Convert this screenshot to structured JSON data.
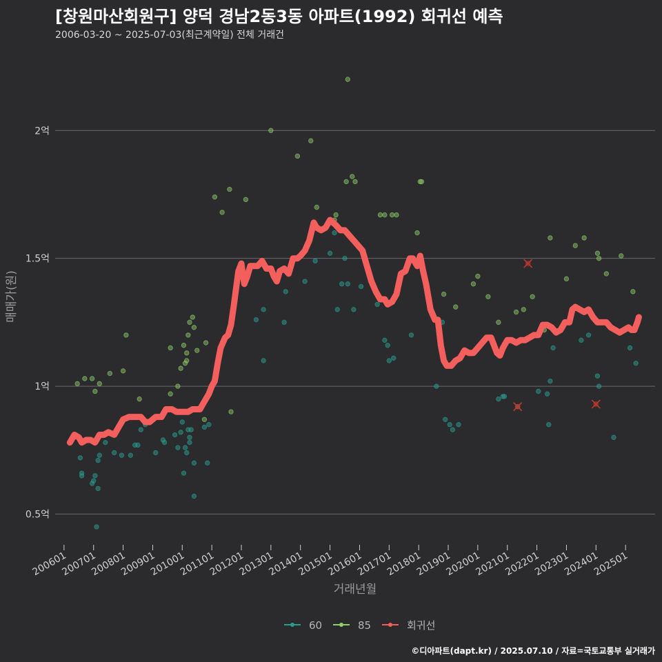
{
  "chart_data": {
    "type": "scatter",
    "title": "[창원마산회원구] 양덕 경남2동3동 아파트(1992) 회귀선 예측",
    "subtitle": "2006-03-20 ~ 2025-07-03(최근계약일) 전체 거래건",
    "xlabel": "거래년월",
    "ylabel": "매매가(원)",
    "footer": "©디아파트(dapt.kr) / 2025.07.10 / 자료=국토교통부 실거래가",
    "x_range": [
      2005.7,
      2026.0
    ],
    "y_range": [
      0.38,
      2.3
    ],
    "x_ticks": [
      {
        "x": 2006,
        "label": "200601"
      },
      {
        "x": 2007,
        "label": "200701"
      },
      {
        "x": 2008,
        "label": "200801"
      },
      {
        "x": 2009,
        "label": "200901"
      },
      {
        "x": 2010,
        "label": "201001"
      },
      {
        "x": 2011,
        "label": "201101"
      },
      {
        "x": 2012,
        "label": "201201"
      },
      {
        "x": 2013,
        "label": "201301"
      },
      {
        "x": 2014,
        "label": "201401"
      },
      {
        "x": 2015,
        "label": "201501"
      },
      {
        "x": 2016,
        "label": "201601"
      },
      {
        "x": 2017,
        "label": "201701"
      },
      {
        "x": 2018,
        "label": "201801"
      },
      {
        "x": 2019,
        "label": "201901"
      },
      {
        "x": 2020,
        "label": "202001"
      },
      {
        "x": 2021,
        "label": "202101"
      },
      {
        "x": 2022,
        "label": "202201"
      },
      {
        "x": 2023,
        "label": "202301"
      },
      {
        "x": 2024,
        "label": "202401"
      },
      {
        "x": 2025,
        "label": "202501"
      }
    ],
    "y_ticks": [
      {
        "y": 0.5,
        "label": "0.5억"
      },
      {
        "y": 1.0,
        "label": "1억"
      },
      {
        "y": 1.5,
        "label": "1.5억"
      },
      {
        "y": 2.0,
        "label": "2억"
      }
    ],
    "colors": {
      "s60": "#2a9d8f",
      "s85": "#8fd16a",
      "line": "#f25f5c",
      "cancel": "#c0392b"
    },
    "legend": [
      {
        "key": "s60",
        "label": "60"
      },
      {
        "key": "s85",
        "label": "85"
      },
      {
        "key": "line",
        "label": "회귀선"
      }
    ],
    "series_60": [
      [
        2006.55,
        0.72
      ],
      [
        2006.6,
        0.65
      ],
      [
        2006.6,
        0.66
      ],
      [
        2006.95,
        0.62
      ],
      [
        2007.0,
        0.63
      ],
      [
        2007.05,
        0.65
      ],
      [
        2007.1,
        0.45
      ],
      [
        2007.15,
        0.6
      ],
      [
        2007.15,
        0.71
      ],
      [
        2007.2,
        0.73
      ],
      [
        2007.4,
        0.78
      ],
      [
        2007.7,
        0.74
      ],
      [
        2007.95,
        0.73
      ],
      [
        2008.25,
        0.73
      ],
      [
        2008.4,
        0.77
      ],
      [
        2008.5,
        0.77
      ],
      [
        2008.6,
        0.83
      ],
      [
        2008.75,
        0.85
      ],
      [
        2009.1,
        0.74
      ],
      [
        2009.35,
        0.79
      ],
      [
        2009.4,
        0.78
      ],
      [
        2009.75,
        0.81
      ],
      [
        2009.85,
        0.76
      ],
      [
        2009.95,
        0.82
      ],
      [
        2010.0,
        0.86
      ],
      [
        2010.05,
        0.66
      ],
      [
        2010.1,
        0.76
      ],
      [
        2010.15,
        0.74
      ],
      [
        2010.2,
        0.83
      ],
      [
        2010.25,
        0.8
      ],
      [
        2010.25,
        0.78
      ],
      [
        2010.3,
        0.83
      ],
      [
        2010.4,
        0.57
      ],
      [
        2010.4,
        0.7
      ],
      [
        2010.75,
        0.84
      ],
      [
        2010.85,
        0.7
      ],
      [
        2010.9,
        0.85
      ],
      [
        2012.5,
        1.26
      ],
      [
        2012.75,
        1.1
      ],
      [
        2012.75,
        1.3
      ],
      [
        2013.45,
        1.25
      ],
      [
        2013.5,
        1.37
      ],
      [
        2014.15,
        1.41
      ],
      [
        2014.5,
        1.49
      ],
      [
        2015.0,
        1.52
      ],
      [
        2015.15,
        1.6
      ],
      [
        2015.25,
        1.3
      ],
      [
        2015.4,
        1.4
      ],
      [
        2015.5,
        1.5
      ],
      [
        2015.6,
        1.4
      ],
      [
        2015.8,
        1.3
      ],
      [
        2016.05,
        1.39
      ],
      [
        2016.6,
        1.32
      ],
      [
        2016.85,
        1.18
      ],
      [
        2016.95,
        1.16
      ],
      [
        2017.0,
        1.1
      ],
      [
        2017.15,
        1.11
      ],
      [
        2017.75,
        1.2
      ],
      [
        2018.6,
        1.0
      ],
      [
        2018.8,
        1.25
      ],
      [
        2018.9,
        0.87
      ],
      [
        2019.05,
        0.85
      ],
      [
        2019.15,
        0.83
      ],
      [
        2019.35,
        0.85
      ],
      [
        2020.7,
        0.95
      ],
      [
        2020.85,
        0.96
      ],
      [
        2020.9,
        0.96
      ],
      [
        2021.35,
        0.92
      ],
      [
        2022.05,
        0.98
      ],
      [
        2022.35,
        0.97
      ],
      [
        2022.4,
        0.85
      ],
      [
        2022.45,
        1.02
      ],
      [
        2022.55,
        1.15
      ],
      [
        2023.5,
        1.18
      ],
      [
        2023.75,
        1.2
      ],
      [
        2024.05,
        1.04
      ],
      [
        2024.1,
        1.0
      ],
      [
        2024.6,
        0.8
      ],
      [
        2025.15,
        1.15
      ],
      [
        2025.35,
        1.09
      ]
    ],
    "series_85": [
      [
        2006.45,
        1.01
      ],
      [
        2006.7,
        1.03
      ],
      [
        2006.95,
        1.03
      ],
      [
        2007.05,
        0.98
      ],
      [
        2007.2,
        1.01
      ],
      [
        2007.55,
        1.05
      ],
      [
        2008.0,
        1.06
      ],
      [
        2008.1,
        1.2
      ],
      [
        2008.55,
        0.95
      ],
      [
        2009.6,
        1.15
      ],
      [
        2009.6,
        0.97
      ],
      [
        2009.85,
        1.0
      ],
      [
        2009.95,
        1.07
      ],
      [
        2010.05,
        1.16
      ],
      [
        2010.1,
        1.09
      ],
      [
        2010.15,
        1.13
      ],
      [
        2010.15,
        1.1
      ],
      [
        2010.2,
        1.2
      ],
      [
        2010.25,
        1.25
      ],
      [
        2010.35,
        1.27
      ],
      [
        2010.4,
        1.23
      ],
      [
        2010.5,
        1.14
      ],
      [
        2010.75,
        0.87
      ],
      [
        2010.8,
        1.17
      ],
      [
        2011.1,
        1.74
      ],
      [
        2011.35,
        1.68
      ],
      [
        2011.6,
        1.77
      ],
      [
        2011.65,
        0.9
      ],
      [
        2012.15,
        1.73
      ],
      [
        2013.0,
        2.0
      ],
      [
        2013.9,
        1.9
      ],
      [
        2014.35,
        1.96
      ],
      [
        2014.55,
        1.7
      ],
      [
        2015.15,
        1.65
      ],
      [
        2015.2,
        1.67
      ],
      [
        2015.6,
        2.2
      ],
      [
        2015.75,
        1.82
      ],
      [
        2015.85,
        1.8
      ],
      [
        2015.55,
        1.8
      ],
      [
        2016.7,
        1.67
      ],
      [
        2016.85,
        1.67
      ],
      [
        2017.1,
        1.67
      ],
      [
        2017.25,
        1.67
      ],
      [
        2017.95,
        1.6
      ],
      [
        2018.05,
        1.8
      ],
      [
        2018.1,
        1.8
      ],
      [
        2018.85,
        1.36
      ],
      [
        2019.25,
        1.31
      ],
      [
        2019.85,
        1.4
      ],
      [
        2020.0,
        1.43
      ],
      [
        2020.35,
        1.35
      ],
      [
        2020.7,
        1.25
      ],
      [
        2021.3,
        1.29
      ],
      [
        2021.55,
        1.3
      ],
      [
        2021.85,
        1.35
      ],
      [
        2022.05,
        1.2
      ],
      [
        2022.25,
        1.22
      ],
      [
        2022.45,
        1.58
      ],
      [
        2023.0,
        1.42
      ],
      [
        2023.3,
        1.55
      ],
      [
        2023.6,
        1.58
      ],
      [
        2024.05,
        1.52
      ],
      [
        2024.1,
        1.5
      ],
      [
        2024.35,
        1.44
      ],
      [
        2024.85,
        1.51
      ],
      [
        2025.25,
        1.37
      ]
    ],
    "cancelled": [
      [
        2021.35,
        0.92
      ],
      [
        2021.7,
        1.48
      ],
      [
        2024.0,
        0.93
      ]
    ],
    "regression": [
      [
        2006.2,
        0.78
      ],
      [
        2006.35,
        0.81
      ],
      [
        2006.5,
        0.8
      ],
      [
        2006.6,
        0.78
      ],
      [
        2006.75,
        0.79
      ],
      [
        2006.9,
        0.79
      ],
      [
        2007.05,
        0.78
      ],
      [
        2007.2,
        0.81
      ],
      [
        2007.35,
        0.81
      ],
      [
        2007.5,
        0.82
      ],
      [
        2007.7,
        0.81
      ],
      [
        2007.85,
        0.84
      ],
      [
        2008.0,
        0.87
      ],
      [
        2008.2,
        0.88
      ],
      [
        2008.4,
        0.88
      ],
      [
        2008.6,
        0.88
      ],
      [
        2008.75,
        0.86
      ],
      [
        2008.9,
        0.86
      ],
      [
        2009.1,
        0.88
      ],
      [
        2009.3,
        0.88
      ],
      [
        2009.45,
        0.91
      ],
      [
        2009.65,
        0.91
      ],
      [
        2009.8,
        0.9
      ],
      [
        2010.0,
        0.9
      ],
      [
        2010.1,
        0.9
      ],
      [
        2010.2,
        0.9
      ],
      [
        2010.35,
        0.91
      ],
      [
        2010.5,
        0.91
      ],
      [
        2010.6,
        0.91
      ],
      [
        2010.75,
        0.94
      ],
      [
        2010.9,
        0.97
      ],
      [
        2011.0,
        1.0
      ],
      [
        2011.1,
        1.02
      ],
      [
        2011.2,
        1.09
      ],
      [
        2011.3,
        1.15
      ],
      [
        2011.45,
        1.19
      ],
      [
        2011.55,
        1.2
      ],
      [
        2011.65,
        1.24
      ],
      [
        2011.75,
        1.32
      ],
      [
        2011.9,
        1.45
      ],
      [
        2012.0,
        1.48
      ],
      [
        2012.1,
        1.4
      ],
      [
        2012.2,
        1.43
      ],
      [
        2012.3,
        1.47
      ],
      [
        2012.4,
        1.47
      ],
      [
        2012.55,
        1.47
      ],
      [
        2012.7,
        1.49
      ],
      [
        2012.85,
        1.46
      ],
      [
        2013.0,
        1.46
      ],
      [
        2013.1,
        1.43
      ],
      [
        2013.2,
        1.41
      ],
      [
        2013.3,
        1.45
      ],
      [
        2013.45,
        1.46
      ],
      [
        2013.6,
        1.44
      ],
      [
        2013.75,
        1.5
      ],
      [
        2013.9,
        1.5
      ],
      [
        2014.0,
        1.51
      ],
      [
        2014.15,
        1.53
      ],
      [
        2014.3,
        1.57
      ],
      [
        2014.45,
        1.64
      ],
      [
        2014.55,
        1.62
      ],
      [
        2014.7,
        1.61
      ],
      [
        2014.85,
        1.62
      ],
      [
        2015.0,
        1.65
      ],
      [
        2015.1,
        1.64
      ],
      [
        2015.2,
        1.63
      ],
      [
        2015.35,
        1.61
      ],
      [
        2015.5,
        1.61
      ],
      [
        2015.65,
        1.59
      ],
      [
        2015.8,
        1.57
      ],
      [
        2015.95,
        1.55
      ],
      [
        2016.1,
        1.53
      ],
      [
        2016.25,
        1.47
      ],
      [
        2016.4,
        1.41
      ],
      [
        2016.55,
        1.37
      ],
      [
        2016.7,
        1.34
      ],
      [
        2016.85,
        1.34
      ],
      [
        2016.95,
        1.32
      ],
      [
        2017.1,
        1.33
      ],
      [
        2017.25,
        1.36
      ],
      [
        2017.4,
        1.44
      ],
      [
        2017.55,
        1.45
      ],
      [
        2017.7,
        1.5
      ],
      [
        2017.8,
        1.5
      ],
      [
        2017.95,
        1.47
      ],
      [
        2018.05,
        1.51
      ],
      [
        2018.15,
        1.45
      ],
      [
        2018.25,
        1.4
      ],
      [
        2018.4,
        1.3
      ],
      [
        2018.55,
        1.26
      ],
      [
        2018.65,
        1.26
      ],
      [
        2018.75,
        1.16
      ],
      [
        2018.85,
        1.1
      ],
      [
        2018.95,
        1.08
      ],
      [
        2019.1,
        1.08
      ],
      [
        2019.25,
        1.1
      ],
      [
        2019.4,
        1.11
      ],
      [
        2019.55,
        1.14
      ],
      [
        2019.7,
        1.13
      ],
      [
        2019.85,
        1.13
      ],
      [
        2020.0,
        1.15
      ],
      [
        2020.15,
        1.17
      ],
      [
        2020.3,
        1.19
      ],
      [
        2020.45,
        1.19
      ],
      [
        2020.55,
        1.16
      ],
      [
        2020.65,
        1.13
      ],
      [
        2020.75,
        1.12
      ],
      [
        2020.85,
        1.15
      ],
      [
        2021.0,
        1.18
      ],
      [
        2021.15,
        1.18
      ],
      [
        2021.3,
        1.17
      ],
      [
        2021.45,
        1.18
      ],
      [
        2021.6,
        1.18
      ],
      [
        2021.75,
        1.19
      ],
      [
        2021.9,
        1.2
      ],
      [
        2022.05,
        1.2
      ],
      [
        2022.2,
        1.24
      ],
      [
        2022.35,
        1.24
      ],
      [
        2022.5,
        1.23
      ],
      [
        2022.65,
        1.21
      ],
      [
        2022.8,
        1.22
      ],
      [
        2022.95,
        1.25
      ],
      [
        2023.1,
        1.25
      ],
      [
        2023.2,
        1.3
      ],
      [
        2023.3,
        1.31
      ],
      [
        2023.45,
        1.3
      ],
      [
        2023.6,
        1.29
      ],
      [
        2023.75,
        1.3
      ],
      [
        2023.9,
        1.27
      ],
      [
        2024.05,
        1.25
      ],
      [
        2024.2,
        1.25
      ],
      [
        2024.35,
        1.25
      ],
      [
        2024.5,
        1.23
      ],
      [
        2024.65,
        1.22
      ],
      [
        2024.8,
        1.21
      ],
      [
        2024.95,
        1.22
      ],
      [
        2025.1,
        1.23
      ],
      [
        2025.2,
        1.22
      ],
      [
        2025.3,
        1.22
      ],
      [
        2025.4,
        1.25
      ],
      [
        2025.45,
        1.27
      ]
    ]
  }
}
